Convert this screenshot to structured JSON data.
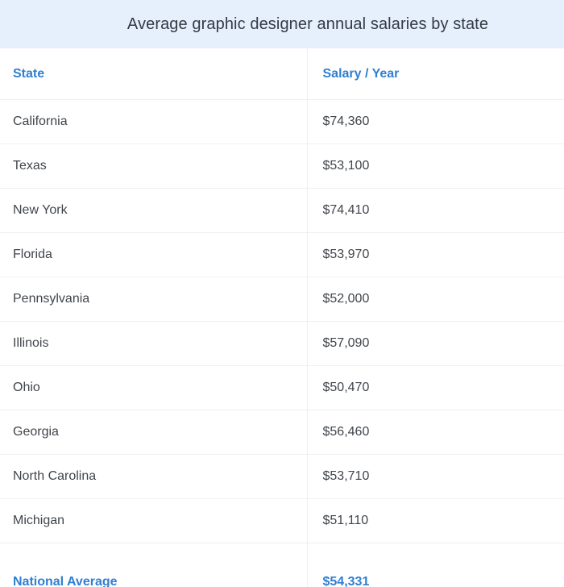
{
  "title": "Average graphic designer annual salaries by state",
  "columns": [
    "State",
    "Salary / Year"
  ],
  "rows": [
    {
      "state": "California",
      "salary": "$74,360"
    },
    {
      "state": "Texas",
      "salary": "$53,100"
    },
    {
      "state": "New York",
      "salary": "$74,410"
    },
    {
      "state": "Florida",
      "salary": "$53,970"
    },
    {
      "state": "Pennsylvania",
      "salary": "$52,000"
    },
    {
      "state": "Illinois",
      "salary": "$57,090"
    },
    {
      "state": "Ohio",
      "salary": "$50,470"
    },
    {
      "state": "Georgia",
      "salary": "$56,460"
    },
    {
      "state": "North Carolina",
      "salary": "$53,710"
    },
    {
      "state": "Michigan",
      "salary": "$51,110"
    }
  ],
  "footer": {
    "state": "National Average",
    "salary": "$54,331"
  },
  "colors": {
    "caption_bg": "#e6f0fd",
    "accent": "#2f7fd0",
    "text": "#40454b"
  }
}
